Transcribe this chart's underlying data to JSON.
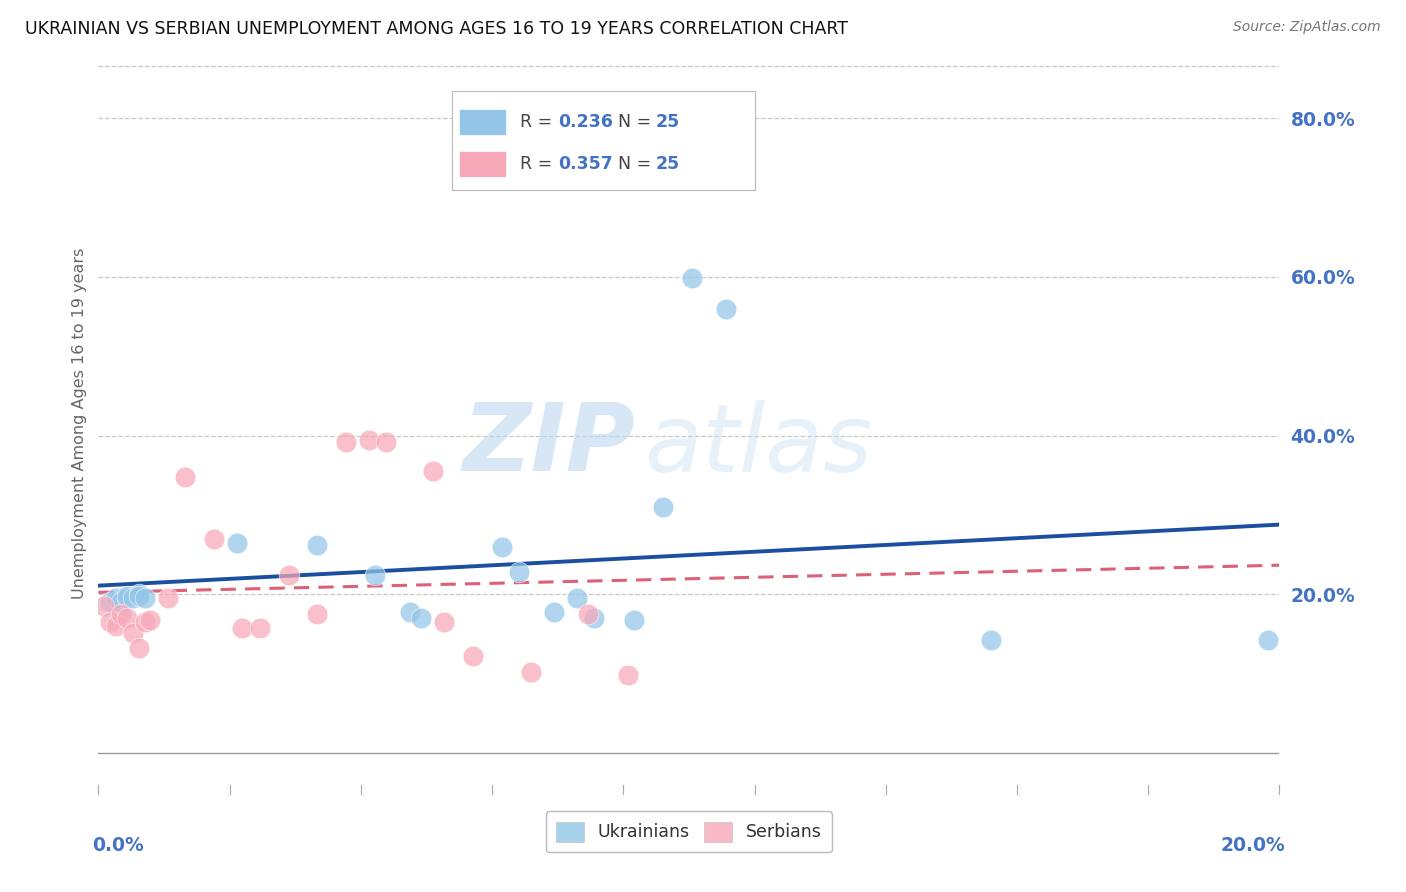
{
  "title": "UKRAINIAN VS SERBIAN UNEMPLOYMENT AMONG AGES 16 TO 19 YEARS CORRELATION CHART",
  "source": "Source: ZipAtlas.com",
  "ylabel": "Unemployment Among Ages 16 to 19 years",
  "ytick_values": [
    0.2,
    0.4,
    0.6,
    0.8
  ],
  "watermark_zip": "ZIP",
  "watermark_atlas": "atlas",
  "ukr_color": "#93c6e8",
  "ser_color": "#f7a8b8",
  "ukr_line_color": "#1a4fa0",
  "ser_line_color": "#d9536a",
  "background_color": "#ffffff",
  "axis_label_color": "#4472c4",
  "grid_color": "#c8c8c8",
  "xmin": 0.0,
  "xmax": 0.205,
  "ymin": -0.04,
  "ymax": 0.87,
  "ukrainian_x": [
    0.002,
    0.003,
    0.004,
    0.005,
    0.005,
    0.006,
    0.007,
    0.007,
    0.008,
    0.024,
    0.038,
    0.048,
    0.054,
    0.056,
    0.07,
    0.073,
    0.079,
    0.083,
    0.086,
    0.093,
    0.098,
    0.103,
    0.109,
    0.155,
    0.203
  ],
  "ukrainian_y": [
    0.19,
    0.195,
    0.19,
    0.195,
    0.198,
    0.195,
    0.2,
    0.198,
    0.195,
    0.265,
    0.262,
    0.225,
    0.178,
    0.17,
    0.26,
    0.228,
    0.178,
    0.196,
    0.17,
    0.168,
    0.31,
    0.598,
    0.56,
    0.142,
    0.142
  ],
  "serbian_x": [
    0.001,
    0.002,
    0.003,
    0.004,
    0.005,
    0.006,
    0.007,
    0.008,
    0.009,
    0.012,
    0.015,
    0.02,
    0.025,
    0.028,
    0.033,
    0.038,
    0.043,
    0.047,
    0.05,
    0.058,
    0.06,
    0.065,
    0.075,
    0.085,
    0.092
  ],
  "serbian_y": [
    0.185,
    0.165,
    0.16,
    0.175,
    0.17,
    0.152,
    0.132,
    0.165,
    0.168,
    0.195,
    0.348,
    0.27,
    0.158,
    0.158,
    0.225,
    0.175,
    0.392,
    0.395,
    0.392,
    0.355,
    0.165,
    0.122,
    0.102,
    0.175,
    0.098
  ],
  "legend_ukr_r": "0.236",
  "legend_ukr_n": "25",
  "legend_ser_r": "0.357",
  "legend_ser_n": "25"
}
